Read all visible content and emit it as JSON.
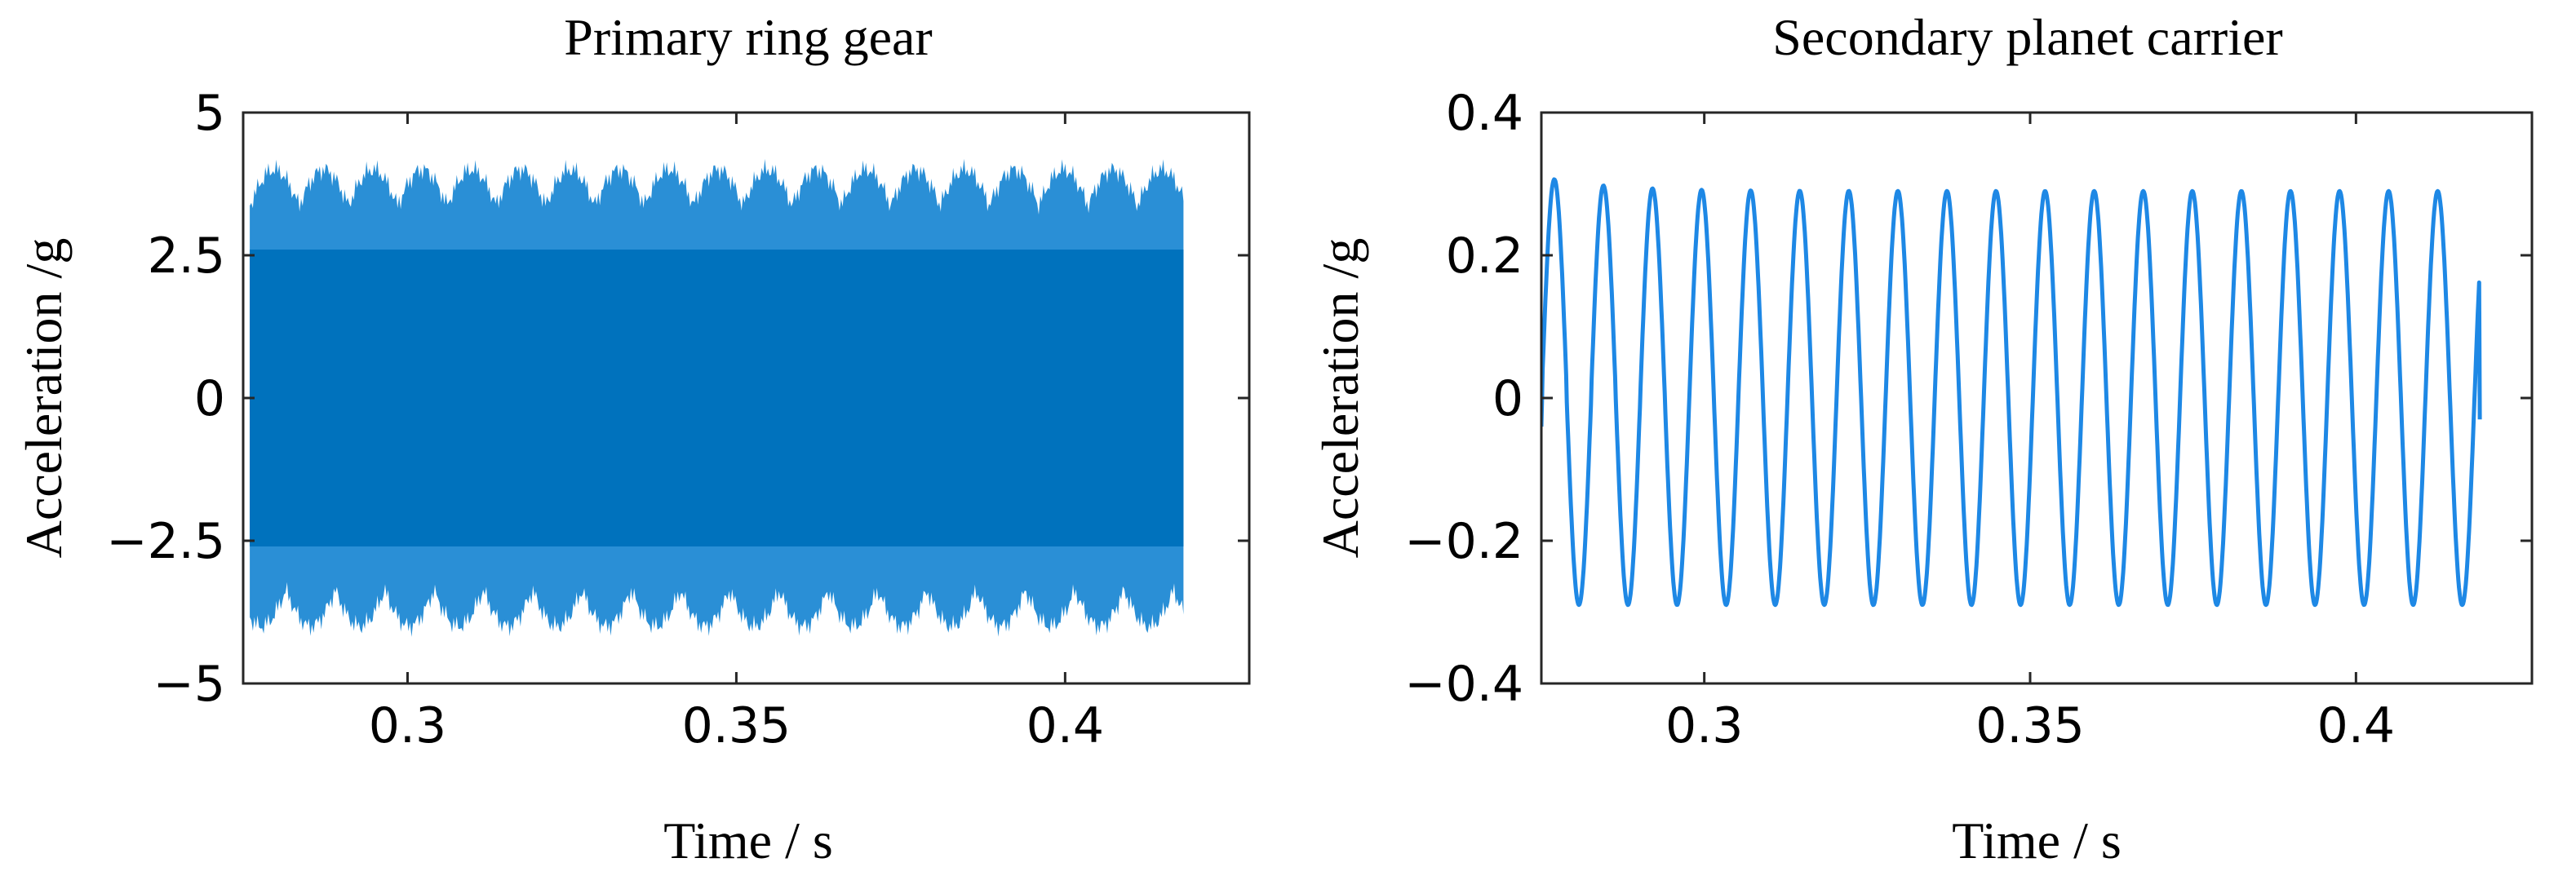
{
  "chart_data": [
    {
      "type": "line",
      "title": "Primary ring gear",
      "xlabel": "Time / s",
      "ylabel": "Acceleration /g",
      "xlim": [
        0.275,
        0.428
      ],
      "ylim": [
        -5,
        5
      ],
      "x_ticks": [
        0.3,
        0.35,
        0.4
      ],
      "x_tick_labels": [
        "0.3",
        "0.35",
        "0.4"
      ],
      "y_ticks": [
        5,
        2.5,
        0,
        -2.5,
        -5
      ],
      "y_tick_labels": [
        "5",
        "2.5",
        "0",
        "−2.5",
        "−5"
      ],
      "grid": false,
      "series": [
        {
          "color": "#0072BD",
          "signal": "dense high-frequency vibration",
          "x_start": 0.276,
          "x_end": 0.418,
          "core_amplitude": 2.6,
          "peak_amplitude": 4.0,
          "modulation_period": 0.0075
        }
      ]
    },
    {
      "type": "line",
      "title": "Secondary planet carrier",
      "xlabel": "Time / s",
      "ylabel": "Acceleration /g",
      "xlim": [
        0.275,
        0.427
      ],
      "ylim": [
        -0.4,
        0.4
      ],
      "x_ticks": [
        0.3,
        0.35,
        0.4
      ],
      "x_tick_labels": [
        "0.3",
        "0.35",
        "0.4"
      ],
      "y_ticks": [
        0.4,
        0.2,
        0,
        -0.2,
        -0.4
      ],
      "y_tick_labels": [
        "0.4",
        "0.2",
        "0",
        "−0.2",
        "−0.4"
      ],
      "grid": false,
      "series": [
        {
          "color": "#1E88E5",
          "signal": "periodic oscillation",
          "x_start": 0.275,
          "x_end": 0.419,
          "amplitude": 0.29,
          "period": 0.00753,
          "first_peak_x": 0.277,
          "first_peak_y": 0.31,
          "end_y": -0.03
        }
      ]
    }
  ]
}
